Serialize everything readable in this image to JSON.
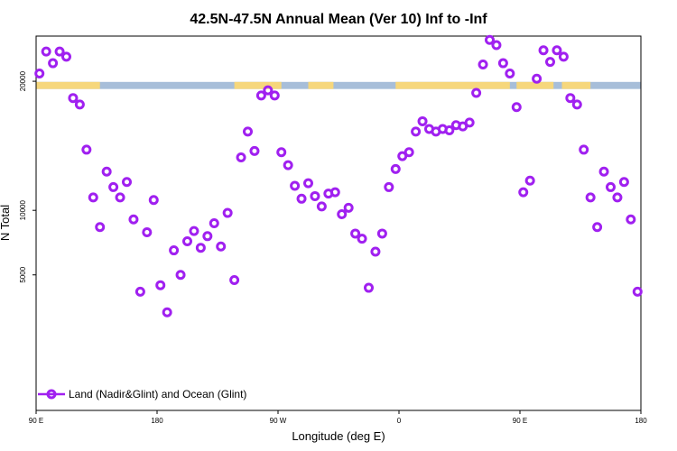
{
  "chart_data": {
    "type": "scatter",
    "title": "42.5N-47.5N Annual Mean (Ver 10)   Inf to -Inf",
    "xlabel": "Longitude (deg E)",
    "ylabel": "N Total",
    "xlim": [
      90,
      450
    ],
    "ylim": [
      -5500,
      23500
    ],
    "x_ticks": [
      {
        "value": 90,
        "label": "90 E"
      },
      {
        "value": 162,
        "label": "180"
      },
      {
        "value": 234,
        "label": "90 W"
      },
      {
        "value": 306,
        "label": "0"
      },
      {
        "value": 378,
        "label": "90 E"
      },
      {
        "value": 450,
        "label": "180"
      }
    ],
    "y_ticks": [
      {
        "value": 5000,
        "label": "5000"
      },
      {
        "value": 10000,
        "label": "10000"
      },
      {
        "value": 20000,
        "label": "20000"
      }
    ],
    "legend": {
      "position": "bottom-left",
      "entries": [
        {
          "label": "Land (Nadir&Glint) and Ocean (Glint)",
          "color": "#a020f0"
        }
      ]
    },
    "map_strip": {
      "y_range": [
        19400,
        19950
      ],
      "land_color": "#f6d77c",
      "ocean_color": "#a7bed9",
      "land_segments": [
        [
          90,
          128
        ],
        [
          208,
          236
        ],
        [
          252,
          267
        ],
        [
          304,
          372
        ],
        [
          376,
          398
        ],
        [
          403,
          420
        ]
      ]
    },
    "series": [
      {
        "name": "Land (Nadir&Glint) and Ocean (Glint)",
        "color": "#a020f0",
        "x": [
          92,
          96,
          100,
          104,
          108,
          112,
          116,
          120,
          124,
          128,
          132,
          136,
          140,
          144,
          148,
          152,
          156,
          160,
          164,
          168,
          172,
          176,
          180,
          184,
          188,
          192,
          196,
          200,
          204,
          208,
          212,
          216,
          220,
          224,
          228,
          232,
          236,
          240,
          244,
          248,
          252,
          256,
          260,
          264,
          268,
          272,
          276,
          280,
          284,
          288,
          292,
          296,
          300,
          304,
          308,
          312,
          316,
          320,
          324,
          328,
          332,
          336,
          340,
          344,
          348,
          352,
          356,
          360,
          364,
          368,
          372,
          376,
          380,
          384,
          388,
          392,
          396,
          400,
          404,
          408,
          412,
          416,
          420,
          424,
          428,
          432,
          436,
          440,
          444,
          448
        ],
        "y": [
          20600,
          22300,
          21400,
          22300,
          21900,
          18700,
          18200,
          14700,
          11000,
          8700,
          13000,
          11800,
          11000,
          12200,
          9300,
          3700,
          8300,
          10800,
          4200,
          2100,
          6900,
          5000,
          7600,
          8400,
          7100,
          8000,
          9000,
          7200,
          9800,
          4600,
          14100,
          16100,
          14600,
          18900,
          19300,
          18900,
          14500,
          13500,
          11900,
          10900,
          12100,
          11100,
          10300,
          11300,
          11400,
          9700,
          10200,
          8200,
          7800,
          4000,
          6800,
          8200,
          11800,
          13200,
          14200,
          14500,
          16100,
          16900,
          16300,
          16100,
          16300,
          16200,
          16600,
          16500,
          16800,
          19100,
          21300,
          23200,
          22800,
          21400,
          20600,
          18000,
          11400,
          12300,
          20200,
          22400,
          21500,
          22400,
          21900,
          18700,
          18200,
          14700,
          11000,
          8700,
          13000,
          11800,
          11000,
          12200,
          9300,
          3700
        ]
      }
    ]
  }
}
